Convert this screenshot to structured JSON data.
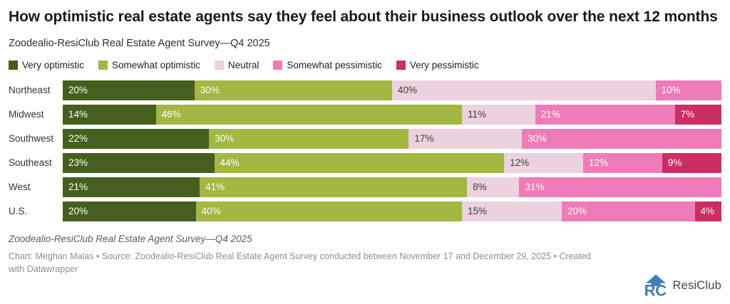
{
  "header": {
    "title": "How optimistic real estate agents say they feel about their business outlook over the next 12 months",
    "subtitle": "Zoodealio-ResiClub Real Estate Agent Survey—Q4 2025"
  },
  "chart_data": {
    "type": "bar",
    "orientation": "horizontal",
    "stacked": true,
    "unit": "%",
    "xlim": [
      0,
      100
    ],
    "grid": false,
    "legend_position": "top",
    "categories": [
      "Northeast",
      "Midwest",
      "Southwest",
      "Southeast",
      "West",
      "U.S."
    ],
    "series": [
      {
        "name": "Very optimistic",
        "color": "#45601e",
        "label_color": "#ffffff",
        "values": [
          20,
          14,
          22,
          23,
          21,
          20
        ]
      },
      {
        "name": "Somewhat optimistic",
        "color": "#a3b743",
        "label_color": "#ffffff",
        "values": [
          30,
          46,
          30,
          44,
          41,
          40
        ]
      },
      {
        "name": "Neutral",
        "color": "#ecd1df",
        "label_color": "#3d3d3d",
        "values": [
          40,
          11,
          17,
          12,
          8,
          15
        ]
      },
      {
        "name": "Somewhat pessimistic",
        "color": "#ee7cb9",
        "label_color": "#ffffff",
        "values": [
          10,
          21,
          30,
          12,
          31,
          20
        ]
      },
      {
        "name": "Very pessimistic",
        "color": "#cb2e62",
        "label_color": "#ffffff",
        "values": [
          0,
          7,
          0,
          9,
          0,
          4
        ]
      }
    ]
  },
  "footer": {
    "source_note": "Zoodealio-ResiClub Real Estate Agent Survey—Q4 2025",
    "credit": "Chart: Meghan Malas • Source: Zoodealio-ResiClub Real Estate Agent Survey conducted between November 17 and December 29, 2025 • Created with Datawrapper",
    "logo_text": "ResiClub"
  },
  "colors": {
    "logo_blue": "#4080b5",
    "logo_text": "#3e4852",
    "title_text": "#18191d",
    "credit_text": "#8e8e8e"
  }
}
